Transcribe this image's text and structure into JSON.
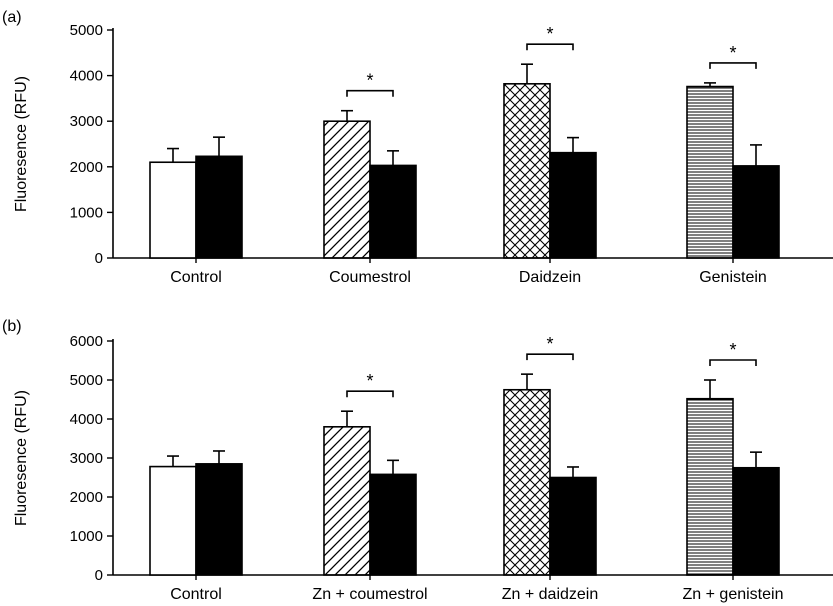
{
  "chart_data": [
    {
      "panel_label": "(a)",
      "type": "bar",
      "ylabel": "Fluoresence (RFU)",
      "ylim": [
        0,
        5000
      ],
      "yticks": [
        0,
        1000,
        2000,
        3000,
        4000,
        5000
      ],
      "categories": [
        "Control",
        "Coumestrol",
        "Daidzein",
        "Genistein"
      ],
      "patterns": [
        "none",
        "diagonal",
        "crosshatch",
        "horizontal"
      ],
      "series": [
        {
          "fill": "patterned",
          "values": [
            2100,
            3000,
            3820,
            3760
          ],
          "errors": [
            300,
            230,
            430,
            80
          ]
        },
        {
          "fill": "#000000",
          "values": [
            2230,
            2030,
            2310,
            2020
          ],
          "errors": [
            420,
            320,
            330,
            460
          ]
        }
      ],
      "significance": [
        false,
        true,
        true,
        true
      ],
      "significance_symbol": "*"
    },
    {
      "panel_label": "(b)",
      "type": "bar",
      "ylabel": "Fluoresence (RFU)",
      "ylim": [
        0,
        6000
      ],
      "yticks": [
        0,
        1000,
        2000,
        3000,
        4000,
        5000,
        6000
      ],
      "categories": [
        "Control",
        "Zn + coumestrol",
        "Zn + daidzein",
        "Zn + genistein"
      ],
      "patterns": [
        "none",
        "diagonal",
        "crosshatch",
        "horizontal"
      ],
      "series": [
        {
          "fill": "patterned",
          "values": [
            2780,
            3800,
            4750,
            4520
          ],
          "errors": [
            270,
            400,
            400,
            480
          ]
        },
        {
          "fill": "#000000",
          "values": [
            2850,
            2580,
            2500,
            2750
          ],
          "errors": [
            330,
            360,
            270,
            400
          ]
        }
      ],
      "significance": [
        false,
        true,
        true,
        true
      ],
      "significance_symbol": "*"
    }
  ]
}
